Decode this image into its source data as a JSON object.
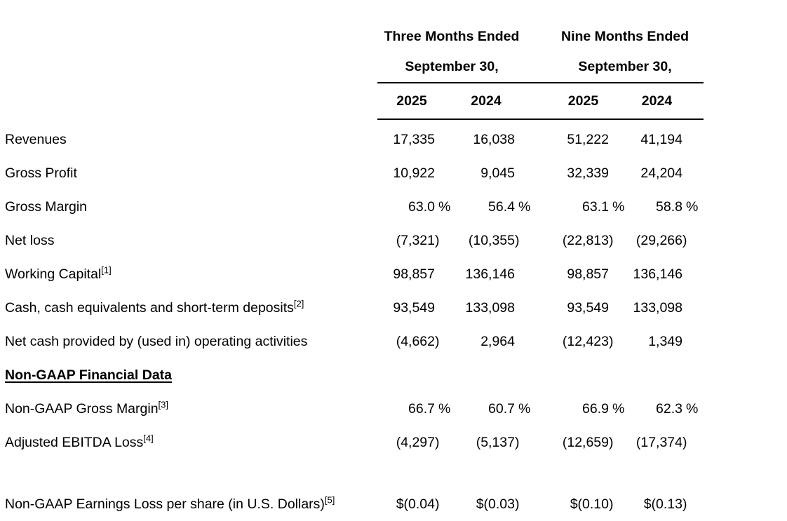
{
  "table": {
    "col_groups": [
      {
        "title_line1": "Three Months Ended",
        "title_line2": "September 30,",
        "years": [
          "2025",
          "2024"
        ]
      },
      {
        "title_line1": "Nine Months Ended",
        "title_line2": "September 30,",
        "years": [
          "2025",
          "2024"
        ]
      }
    ],
    "year_headers": [
      "2025",
      "2024",
      "2025",
      "2024"
    ],
    "rows": [
      {
        "label": "Revenues",
        "sup": "",
        "style": "normal",
        "values": [
          "17,335",
          "16,038",
          "51,222",
          "41,194"
        ]
      },
      {
        "label": "Gross Profit",
        "sup": "",
        "style": "normal",
        "values": [
          "10,922",
          "9,045",
          "32,339",
          "24,204"
        ]
      },
      {
        "label": "Gross Margin",
        "sup": "",
        "style": "normal",
        "values": [
          "63.0 %",
          "56.4 %",
          "63.1 %",
          "58.8 %"
        ]
      },
      {
        "label": "Net loss",
        "sup": "",
        "style": "normal",
        "values": [
          "(7,321)",
          "(10,355)",
          "(22,813)",
          "(29,266)"
        ]
      },
      {
        "label": "Working Capital",
        "sup": "[1]",
        "style": "normal",
        "values": [
          "98,857",
          "136,146",
          "98,857",
          "136,146"
        ]
      },
      {
        "label": "Cash, cash equivalents and short-term deposits",
        "sup": "[2]",
        "style": "normal",
        "values": [
          "93,549",
          "133,098",
          "93,549",
          "133,098"
        ]
      },
      {
        "label": "Net cash provided by (used in) operating activities",
        "sup": "",
        "style": "normal",
        "values": [
          "(4,662)",
          "2,964",
          "(12,423)",
          "1,349"
        ]
      },
      {
        "label": "Non-GAAP Financial Data",
        "sup": "",
        "style": "section",
        "values": [
          "",
          "",
          "",
          ""
        ]
      },
      {
        "label": "Non-GAAP Gross Margin",
        "sup": "[3]",
        "style": "normal",
        "values": [
          "66.7 %",
          "60.7 %",
          "66.9 %",
          "62.3 %"
        ]
      },
      {
        "label": "Adjusted EBITDA Loss",
        "sup": "[4]",
        "style": "normal",
        "values": [
          "(4,297)",
          "(5,137)",
          "(12,659)",
          "(17,374)"
        ]
      },
      {
        "label": "",
        "sup": "",
        "style": "spacer",
        "values": [
          "",
          "",
          "",
          ""
        ]
      },
      {
        "label": "Non-GAAP Earnings Loss per share (in U.S. Dollars)",
        "sup": "[5]",
        "style": "normal",
        "values": [
          "$(0.04)",
          "$(0.03)",
          "$(0.10)",
          "$(0.13)"
        ]
      }
    ],
    "colors": {
      "text": "#000000",
      "background": "#ffffff",
      "rule": "#000000"
    }
  }
}
